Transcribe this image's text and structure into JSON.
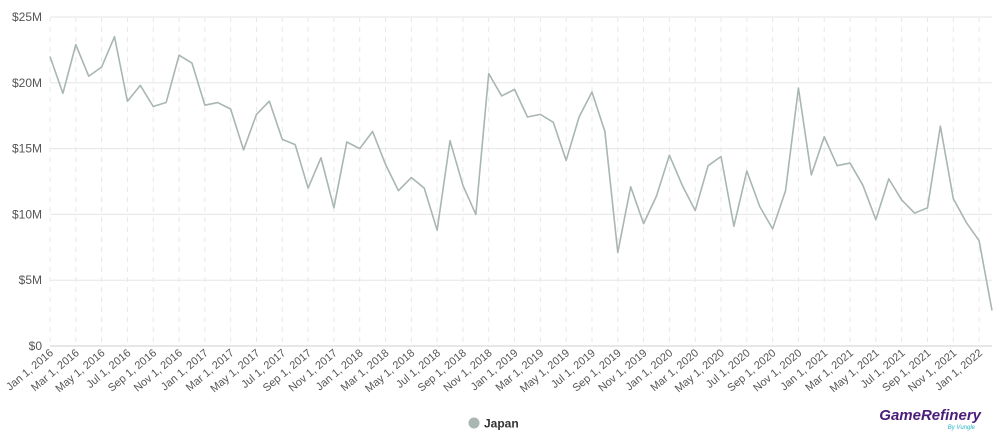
{
  "chart_data": {
    "type": "line",
    "title": "",
    "xlabel": "",
    "ylabel": "",
    "ylim": [
      0,
      25000000
    ],
    "y_ticks": [
      "$0",
      "$5M",
      "$10M",
      "$15M",
      "$20M",
      "$25M"
    ],
    "y_tick_values": [
      0,
      5000000,
      10000000,
      15000000,
      20000000,
      25000000
    ],
    "x_tick_labels": [
      "Jan 1, 2016",
      "Mar 1, 2016",
      "May 1, 2016",
      "Jul 1, 2016",
      "Sep 1, 2016",
      "Nov 1, 2016",
      "Jan 1, 2017",
      "Mar 1, 2017",
      "May 1, 2017",
      "Jul 1, 2017",
      "Sep 1, 2017",
      "Nov 1, 2017",
      "Jan 1, 2018",
      "Mar 1, 2018",
      "May 1, 2018",
      "Jul 1, 2018",
      "Sep 1, 2018",
      "Nov 1, 2018",
      "Jan 1, 2019",
      "Mar 1, 2019",
      "May 1, 2019",
      "Jul 1, 2019",
      "Sep 1, 2019",
      "Nov 1, 2019",
      "Jan 1, 2020",
      "Mar 1, 2020",
      "May 1, 2020",
      "Jul 1, 2020",
      "Sep 1, 2020",
      "Nov 1, 2020",
      "Jan 1, 2021",
      "Mar 1, 2021",
      "May 1, 2021",
      "Jul 1, 2021",
      "Sep 1, 2021",
      "Nov 1, 2021",
      "Jan 1, 2022"
    ],
    "x": [
      "2016-01",
      "2016-02",
      "2016-03",
      "2016-04",
      "2016-05",
      "2016-06",
      "2016-07",
      "2016-08",
      "2016-09",
      "2016-10",
      "2016-11",
      "2016-12",
      "2017-01",
      "2017-02",
      "2017-03",
      "2017-04",
      "2017-05",
      "2017-06",
      "2017-07",
      "2017-08",
      "2017-09",
      "2017-10",
      "2017-11",
      "2017-12",
      "2018-01",
      "2018-02",
      "2018-03",
      "2018-04",
      "2018-05",
      "2018-06",
      "2018-07",
      "2018-08",
      "2018-09",
      "2018-10",
      "2018-11",
      "2018-12",
      "2019-01",
      "2019-02",
      "2019-03",
      "2019-04",
      "2019-05",
      "2019-06",
      "2019-07",
      "2019-08",
      "2019-09",
      "2019-10",
      "2019-11",
      "2019-12",
      "2020-01",
      "2020-02",
      "2020-03",
      "2020-04",
      "2020-05",
      "2020-06",
      "2020-07",
      "2020-08",
      "2020-09",
      "2020-10",
      "2020-11",
      "2020-12",
      "2021-01",
      "2021-02",
      "2021-03",
      "2021-04",
      "2021-05",
      "2021-06",
      "2021-07",
      "2021-08",
      "2021-09",
      "2021-10",
      "2021-11",
      "2021-12",
      "2022-01",
      "2022-02"
    ],
    "series": [
      {
        "name": "Japan",
        "color": "#a9b6b2",
        "values": [
          22000000,
          19200000,
          22900000,
          20500000,
          21200000,
          23500000,
          18600000,
          19800000,
          18200000,
          18500000,
          22100000,
          21500000,
          18300000,
          18500000,
          18000000,
          14900000,
          17600000,
          18600000,
          15700000,
          15300000,
          12000000,
          14300000,
          10500000,
          15500000,
          15000000,
          16300000,
          13800000,
          11800000,
          12800000,
          12000000,
          8800000,
          15600000,
          12200000,
          10000000,
          20700000,
          19000000,
          19500000,
          17400000,
          17600000,
          17000000,
          14100000,
          17400000,
          19300000,
          16300000,
          7100000,
          12100000,
          9300000,
          11400000,
          14500000,
          12200000,
          10300000,
          13700000,
          14400000,
          9100000,
          13300000,
          10600000,
          8900000,
          11800000,
          19600000,
          13000000,
          15900000,
          13700000,
          13900000,
          12200000,
          9600000,
          12700000,
          11100000,
          10100000,
          10500000,
          16700000,
          11200000,
          9400000,
          8000000,
          2700000
        ]
      }
    ],
    "legend": {
      "placement": "bottom-center",
      "items": [
        "Japan"
      ]
    },
    "grid": true
  },
  "logo": {
    "main": "GameRefinery",
    "sub": "By Vungle"
  }
}
